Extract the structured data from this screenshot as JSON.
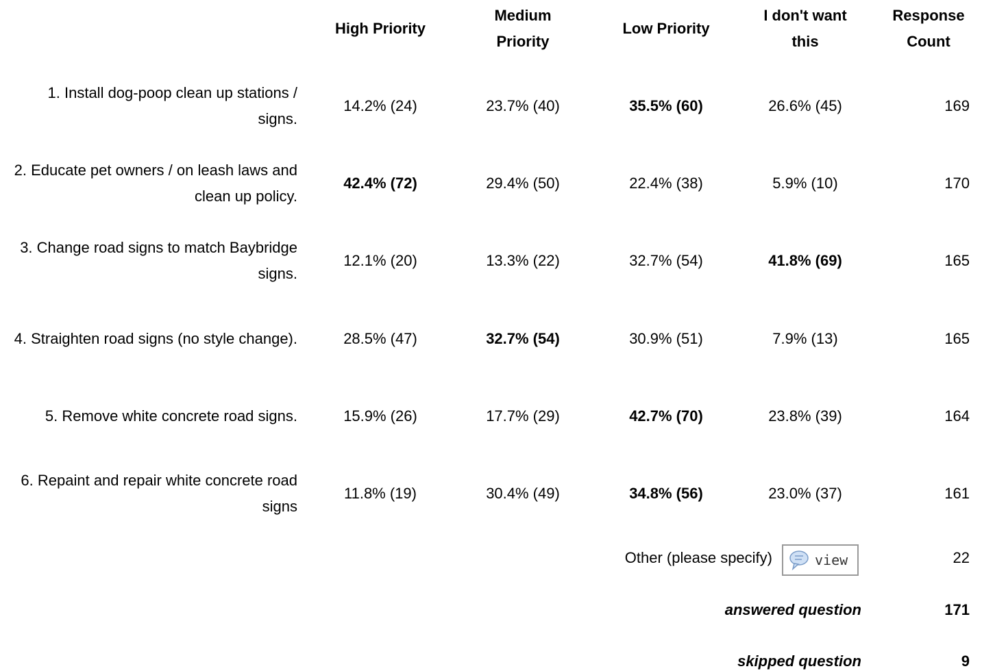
{
  "table": {
    "headers": [
      "High Priority",
      "Medium Priority",
      "Low Priority",
      "I don't want this",
      "Response Count"
    ],
    "rows": [
      {
        "label": "1. Install dog-poop clean up stations / signs.",
        "cells": [
          "14.2% (24)",
          "23.7% (40)",
          "35.5% (60)",
          "26.6% (45)"
        ],
        "bold_cell": 2,
        "count": "169"
      },
      {
        "label": "2. Educate pet owners / on leash laws and clean up policy.",
        "cells": [
          "42.4% (72)",
          "29.4% (50)",
          "22.4% (38)",
          "5.9% (10)"
        ],
        "bold_cell": 0,
        "count": "170"
      },
      {
        "label": "3. Change road signs to match Baybridge signs.",
        "cells": [
          "12.1% (20)",
          "13.3% (22)",
          "32.7% (54)",
          "41.8% (69)"
        ],
        "bold_cell": 3,
        "count": "165"
      },
      {
        "label": "4. Straighten road signs (no style change).",
        "cells": [
          "28.5% (47)",
          "32.7% (54)",
          "30.9% (51)",
          "7.9% (13)"
        ],
        "bold_cell": 1,
        "count": "165"
      },
      {
        "label": "5. Remove white concrete road signs.",
        "cells": [
          "15.9% (26)",
          "17.7% (29)",
          "42.7% (70)",
          "23.8% (39)"
        ],
        "bold_cell": 2,
        "count": "164"
      },
      {
        "label": "6. Repaint and repair white concrete road signs",
        "cells": [
          "11.8% (19)",
          "30.4% (49)",
          "34.8% (56)",
          "23.0% (37)"
        ],
        "bold_cell": 2,
        "count": "161"
      }
    ],
    "other": {
      "label": "Other (please specify)",
      "button": "view",
      "count": "22"
    },
    "answered": {
      "label": "answered question",
      "count": "171"
    },
    "skipped": {
      "label": "skipped question",
      "count": "9"
    }
  }
}
